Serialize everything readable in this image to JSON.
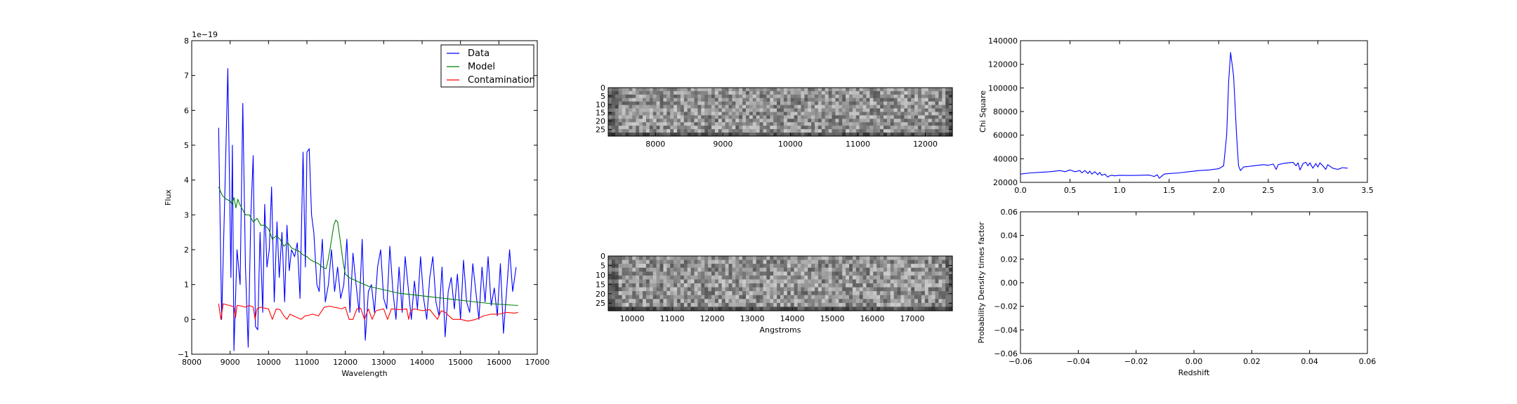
{
  "chart_data": [
    {
      "id": "spectrum",
      "type": "line",
      "xlabel": "Wavelength",
      "ylabel": "Flux",
      "offset_label": "1e−19",
      "xlim": [
        8000,
        17000
      ],
      "ylim": [
        -1,
        8
      ],
      "xticks": [
        8000,
        9000,
        10000,
        11000,
        12000,
        13000,
        14000,
        15000,
        16000,
        17000
      ],
      "xtick_labels": [
        "8000",
        "9000",
        "10000",
        "11000",
        "12000",
        "13000",
        "14000",
        "15000",
        "16000",
        "17000"
      ],
      "yticks": [
        -1,
        0,
        1,
        2,
        3,
        4,
        5,
        6,
        7,
        8
      ],
      "ytick_labels": [
        "−1",
        "0",
        "1",
        "2",
        "3",
        "4",
        "5",
        "6",
        "7",
        "8"
      ],
      "legend": {
        "placement": "top-right"
      },
      "series": [
        {
          "name": "Data",
          "color": "#0000ff",
          "x": [
            8700,
            8780,
            8860,
            8940,
            9020,
            9060,
            9100,
            9180,
            9260,
            9330,
            9400,
            9470,
            9540,
            9600,
            9660,
            9720,
            9780,
            9850,
            9900,
            9960,
            10020,
            10080,
            10150,
            10220,
            10280,
            10350,
            10420,
            10480,
            10540,
            10600,
            10680,
            10750,
            10820,
            10900,
            10960,
            11000,
            11060,
            11120,
            11180,
            11260,
            11320,
            11400,
            11480,
            11560,
            11640,
            11720,
            11800,
            11880,
            11960,
            12040,
            12120,
            12200,
            12280,
            12360,
            12440,
            12520,
            12600,
            12680,
            12760,
            12840,
            12920,
            13000,
            13080,
            13160,
            13240,
            13320,
            13400,
            13480,
            13560,
            13640,
            13720,
            13800,
            13880,
            13960,
            14040,
            14120,
            14200,
            14280,
            14360,
            14440,
            14520,
            14600,
            14680,
            14760,
            14840,
            14920,
            15000,
            15080,
            15160,
            15240,
            15320,
            15400,
            15480,
            15560,
            15640,
            15720,
            15800,
            15880,
            15960,
            16040,
            16120,
            16200,
            16280,
            16360,
            16450
          ],
          "y": [
            5.5,
            0.0,
            3.5,
            7.2,
            1.2,
            5.0,
            -0.9,
            2.0,
            1.0,
            6.2,
            1.5,
            -0.8,
            3.0,
            4.7,
            -0.2,
            -0.3,
            2.5,
            0.2,
            3.3,
            1.5,
            2.0,
            3.8,
            0.5,
            2.8,
            1.2,
            2.5,
            0.5,
            2.7,
            1.4,
            2.0,
            1.8,
            2.2,
            0.6,
            4.8,
            1.5,
            4.8,
            4.9,
            3.0,
            2.5,
            1.0,
            0.8,
            2.3,
            0.5,
            1.0,
            2.0,
            0.8,
            1.5,
            0.6,
            1.0,
            2.3,
            0.2,
            1.9,
            1.0,
            0.2,
            2.3,
            -0.6,
            0.8,
            1.0,
            0.2,
            1.5,
            2.0,
            0.6,
            0.3,
            2.1,
            0.8,
            0.0,
            1.5,
            0.2,
            1.8,
            0.9,
            0.0,
            1.1,
            0.3,
            1.8,
            0.6,
            0.0,
            1.2,
            1.8,
            0.5,
            0.1,
            1.5,
            -0.5,
            0.8,
            1.2,
            0.3,
            1.3,
            0.0,
            1.7,
            0.5,
            0.2,
            1.6,
            0.8,
            0.0,
            1.5,
            0.5,
            1.8,
            0.4,
            0.9,
            0.1,
            1.6,
            -0.4,
            0.8,
            2.0,
            0.8,
            1.5
          ]
        },
        {
          "name": "Model",
          "color": "#008000",
          "x": [
            8700,
            8800,
            8900,
            9000,
            9050,
            9100,
            9150,
            9200,
            9250,
            9300,
            9400,
            9500,
            9600,
            9700,
            9800,
            9900,
            10000,
            10100,
            10200,
            10300,
            10400,
            10500,
            10600,
            10700,
            10800,
            10900,
            11000,
            11100,
            11200,
            11300,
            11400,
            11500,
            11550,
            11600,
            11650,
            11700,
            11750,
            11800,
            11850,
            11900,
            11950,
            12000,
            12100,
            12200,
            12400,
            12600,
            12800,
            13000,
            13400,
            13800,
            14200,
            14600,
            15000,
            15400,
            15800,
            16200,
            16500
          ],
          "y": [
            3.8,
            3.55,
            3.45,
            3.4,
            3.3,
            3.5,
            3.2,
            3.45,
            3.3,
            3.2,
            3.0,
            3.0,
            2.8,
            2.9,
            2.7,
            2.7,
            2.6,
            2.3,
            2.4,
            2.3,
            2.1,
            2.2,
            2.05,
            2.0,
            1.95,
            1.85,
            1.8,
            1.7,
            1.65,
            1.6,
            1.5,
            1.45,
            1.7,
            2.0,
            2.35,
            2.7,
            2.85,
            2.8,
            2.4,
            2.0,
            1.6,
            1.3,
            1.2,
            1.15,
            1.05,
            0.95,
            0.9,
            0.85,
            0.75,
            0.7,
            0.65,
            0.6,
            0.55,
            0.5,
            0.45,
            0.42,
            0.4
          ]
        },
        {
          "name": "Contamination",
          "color": "#ff0000",
          "x": [
            8700,
            8760,
            8820,
            8900,
            9000,
            9100,
            9140,
            9180,
            9220,
            9300,
            9400,
            9500,
            9600,
            9650,
            9700,
            9800,
            9900,
            10000,
            10100,
            10200,
            10300,
            10400,
            10480,
            10560,
            10650,
            10750,
            10850,
            10950,
            11050,
            11150,
            11300,
            11450,
            11600,
            11700,
            11800,
            11900,
            12000,
            12100,
            12200,
            12300,
            12400,
            12500,
            12600,
            12700,
            12800,
            13000,
            13100,
            13200,
            13400,
            13600,
            13650,
            13700,
            13800,
            14000,
            14200,
            14400,
            14500,
            14600,
            14800,
            15000,
            15200,
            15400,
            15600,
            15800,
            16000,
            16200,
            16400,
            16500
          ],
          "y": [
            0.45,
            0.0,
            0.45,
            0.42,
            0.4,
            0.35,
            0.05,
            0.4,
            0.4,
            0.38,
            0.35,
            0.4,
            0.35,
            0.0,
            0.3,
            0.35,
            0.32,
            0.3,
            0.0,
            0.3,
            0.28,
            0.1,
            0.0,
            0.15,
            0.1,
            0.05,
            0.0,
            0.1,
            0.12,
            0.15,
            0.1,
            0.35,
            0.38,
            0.35,
            0.33,
            0.3,
            0.35,
            0.0,
            0.0,
            0.3,
            0.32,
            0.0,
            0.3,
            0.0,
            0.25,
            0.3,
            0.0,
            0.3,
            0.28,
            0.3,
            0.0,
            0.25,
            0.3,
            0.25,
            0.28,
            0.0,
            0.25,
            0.2,
            0.0,
            0.0,
            -0.05,
            0.0,
            0.1,
            0.15,
            0.15,
            0.2,
            0.18,
            0.2
          ]
        }
      ]
    },
    {
      "id": "image-top",
      "type": "heatmap",
      "xlim": [
        7300,
        12400
      ],
      "ylim": [
        29,
        0
      ],
      "xticks": [
        8000,
        9000,
        10000,
        11000,
        12000
      ],
      "xtick_labels": [
        "8000",
        "9000",
        "10000",
        "11000",
        "12000"
      ],
      "yticks": [
        0,
        5,
        10,
        15,
        20,
        25
      ],
      "ytick_labels": [
        "0",
        "5",
        "10",
        "15",
        "20",
        "25"
      ],
      "colormap": "gray"
    },
    {
      "id": "image-bottom",
      "type": "heatmap",
      "xlabel": "Angstroms",
      "xlim": [
        9400,
        18000
      ],
      "ylim": [
        29,
        0
      ],
      "xticks": [
        10000,
        11000,
        12000,
        13000,
        14000,
        15000,
        16000,
        17000
      ],
      "xtick_labels": [
        "10000",
        "11000",
        "12000",
        "13000",
        "14000",
        "15000",
        "16000",
        "17000"
      ],
      "yticks": [
        0,
        5,
        10,
        15,
        20,
        25
      ],
      "ytick_labels": [
        "0",
        "5",
        "10",
        "15",
        "20",
        "25"
      ],
      "colormap": "gray"
    },
    {
      "id": "chisq",
      "type": "line",
      "ylabel": "Chi Square",
      "xlim": [
        0,
        3.5
      ],
      "ylim": [
        20000,
        140000
      ],
      "xticks": [
        0,
        0.5,
        1,
        1.5,
        2,
        2.5,
        3,
        3.5
      ],
      "xtick_labels": [
        "0.0",
        "0.5",
        "1.0",
        "1.5",
        "2.0",
        "2.5",
        "3.0",
        "3.5"
      ],
      "yticks": [
        20000,
        40000,
        60000,
        80000,
        100000,
        120000,
        140000
      ],
      "ytick_labels": [
        "20000",
        "40000",
        "60000",
        "80000",
        "100000",
        "120000",
        "140000"
      ],
      "series": [
        {
          "color": "#0000ff",
          "x": [
            0,
            0.1,
            0.2,
            0.3,
            0.4,
            0.45,
            0.5,
            0.55,
            0.6,
            0.62,
            0.65,
            0.68,
            0.7,
            0.72,
            0.75,
            0.78,
            0.8,
            0.82,
            0.85,
            0.88,
            0.9,
            0.92,
            0.95,
            1.0,
            1.1,
            1.2,
            1.3,
            1.35,
            1.38,
            1.4,
            1.45,
            1.5,
            1.6,
            1.7,
            1.8,
            1.9,
            2.0,
            2.05,
            2.08,
            2.1,
            2.12,
            2.15,
            2.18,
            2.2,
            2.22,
            2.25,
            2.3,
            2.35,
            2.4,
            2.45,
            2.5,
            2.55,
            2.58,
            2.6,
            2.65,
            2.7,
            2.75,
            2.78,
            2.8,
            2.82,
            2.85,
            2.88,
            2.9,
            2.92,
            2.95,
            2.98,
            3.0,
            3.02,
            3.05,
            3.08,
            3.1,
            3.15,
            3.2,
            3.25,
            3.3
          ],
          "y": [
            27000,
            28000,
            28500,
            29000,
            30000,
            29000,
            30500,
            29000,
            30000,
            28000,
            30000,
            27500,
            29500,
            27000,
            29000,
            26500,
            28500,
            26000,
            27000,
            24500,
            25500,
            26000,
            25500,
            26000,
            25800,
            26000,
            26200,
            25000,
            26500,
            23500,
            27000,
            27500,
            28000,
            29000,
            30000,
            30500,
            31500,
            34000,
            60000,
            105000,
            130000,
            110000,
            60000,
            34000,
            30000,
            33000,
            33500,
            34000,
            34500,
            35000,
            34500,
            35500,
            31000,
            35000,
            36000,
            36500,
            37000,
            34000,
            36500,
            30500,
            36000,
            37000,
            34000,
            36500,
            32000,
            36000,
            33000,
            36500,
            34000,
            31000,
            35000,
            32000,
            31000,
            32500,
            32000
          ]
        }
      ]
    },
    {
      "id": "pdf",
      "type": "line",
      "xlabel": "Redshift",
      "ylabel": "Probability Density times factor",
      "xlim": [
        -0.06,
        0.06
      ],
      "ylim": [
        -0.06,
        0.06
      ],
      "xticks": [
        -0.06,
        -0.04,
        -0.02,
        0,
        0.02,
        0.04,
        0.06
      ],
      "xtick_labels": [
        "−0.06",
        "−0.04",
        "−0.02",
        "0.00",
        "0.02",
        "0.04",
        "0.06"
      ],
      "yticks": [
        -0.06,
        -0.04,
        -0.02,
        0,
        0.02,
        0.04,
        0.06
      ],
      "ytick_labels": [
        "−0.06",
        "−0.04",
        "−0.02",
        "0.00",
        "0.02",
        "0.04",
        "0.06"
      ],
      "series": []
    }
  ]
}
